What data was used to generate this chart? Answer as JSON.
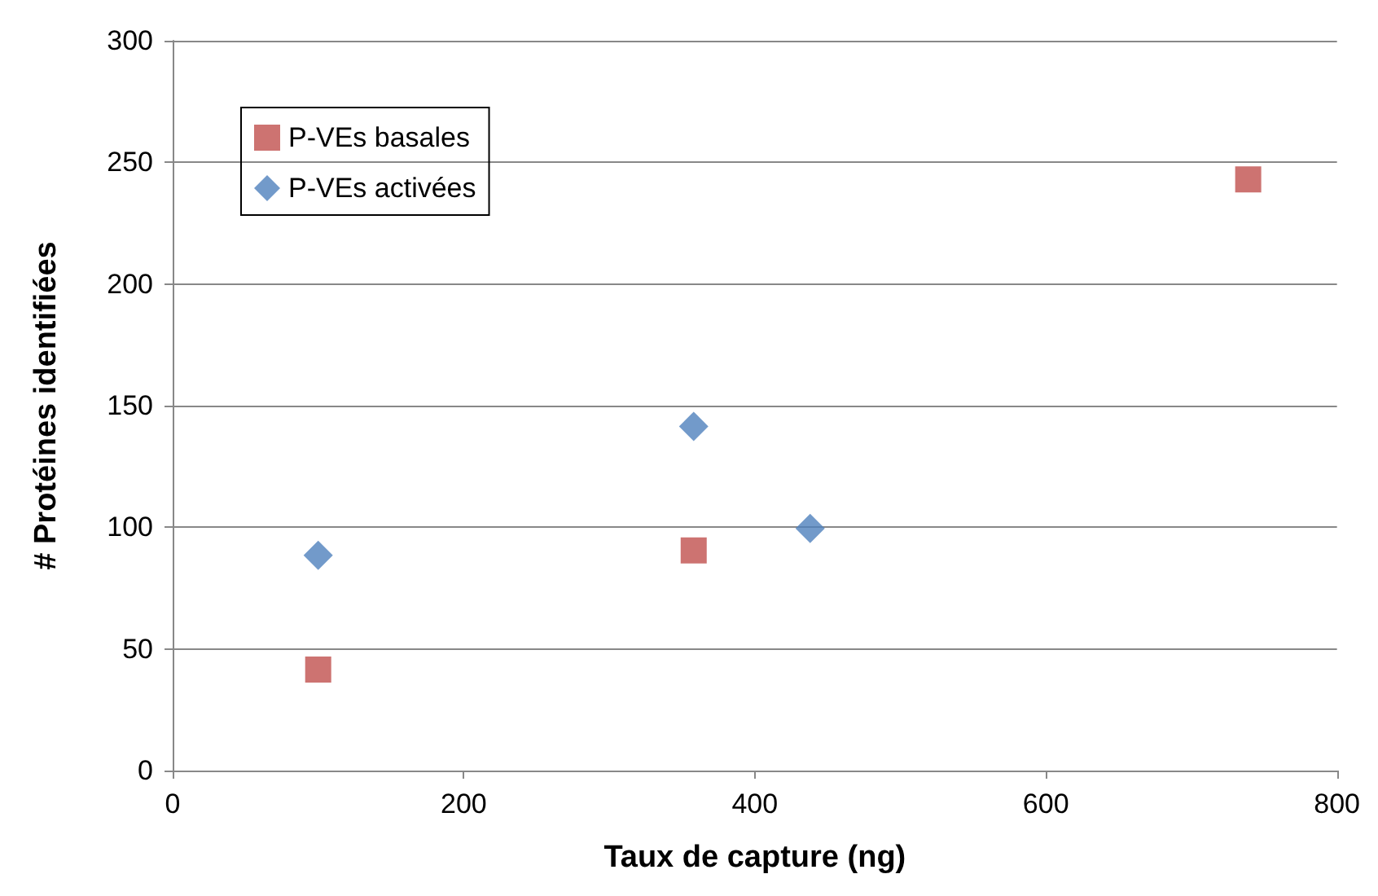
{
  "chart_data": {
    "type": "scatter",
    "xlabel": "Taux de capture (ng)",
    "ylabel": "# Protéines identifiées",
    "xlim": [
      0,
      800
    ],
    "xticks": [
      0,
      200,
      400,
      600,
      800
    ],
    "ylim": [
      0,
      300
    ],
    "yticks": [
      0,
      50,
      100,
      150,
      200,
      250,
      300
    ],
    "grid": "y",
    "legend": "top left",
    "series": [
      {
        "name": "P-VEs basales",
        "color": "#c0504d",
        "marker": "square",
        "x": [
          100,
          358,
          739
        ],
        "values": [
          41.5,
          90.5,
          243
        ]
      },
      {
        "name": "P-VEs activées",
        "color": "#4f81bd",
        "marker": "diamond",
        "x": [
          100,
          358,
          438
        ],
        "values": [
          88.5,
          141.5,
          99.5
        ]
      }
    ]
  }
}
